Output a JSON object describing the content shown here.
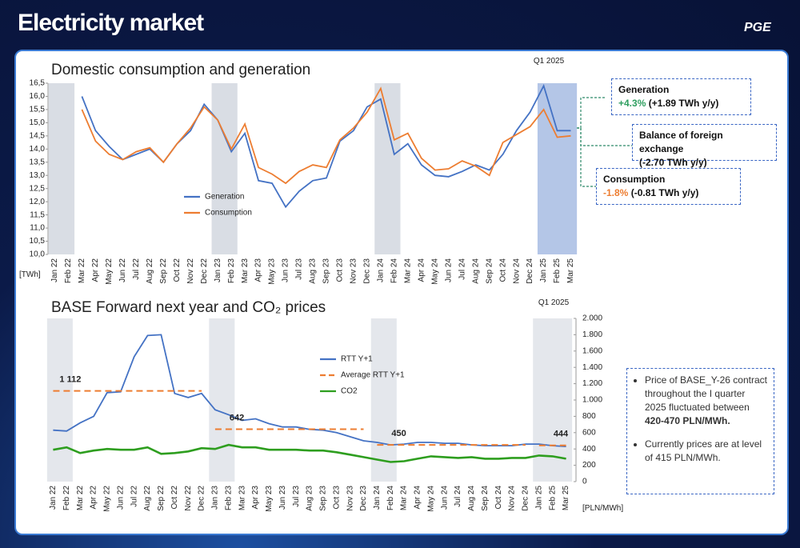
{
  "header": {
    "title": "Electricity market",
    "logo": "PGE"
  },
  "chart_data": [
    {
      "type": "line",
      "title": "Domestic consumption and generation",
      "highlight_label": "Q1 2025",
      "y_unit": "[TWh]",
      "categories": [
        "Jan 22",
        "Feb 22",
        "Mar 22",
        "Apr 22",
        "May 22",
        "Jun 22",
        "Jul 22",
        "Aug 22",
        "Sep 22",
        "Oct 22",
        "Nov 22",
        "Dec 22",
        "Jan 23",
        "Feb 23",
        "Mar 23",
        "Apr 23",
        "May 23",
        "Jun 23",
        "Jul 23",
        "Aug 23",
        "Sep 23",
        "Oct 23",
        "Nov 23",
        "Dec 23",
        "Jan 24",
        "Feb 24",
        "Mar 24",
        "Apr 24",
        "May 24",
        "Jun 24",
        "Jul 24",
        "Aug 24",
        "Sep 24",
        "Oct 24",
        "Nov 24",
        "Dec 24",
        "Jan 25",
        "Feb 25",
        "Mar 25"
      ],
      "series": [
        {
          "name": "Generation",
          "color": "#4472c4",
          "values": [
            null,
            null,
            16.0,
            14.7,
            14.1,
            13.6,
            13.8,
            14.0,
            13.5,
            14.2,
            14.7,
            15.7,
            15.1,
            13.9,
            14.6,
            12.8,
            12.7,
            11.8,
            12.4,
            12.8,
            12.9,
            14.3,
            14.7,
            15.6,
            15.9,
            13.8,
            14.2,
            13.4,
            13.0,
            12.95,
            13.15,
            13.4,
            13.2,
            13.8,
            14.7,
            15.4,
            16.4,
            14.7,
            14.7
          ]
        },
        {
          "name": "Consumption",
          "color": "#ed7d31",
          "values": [
            null,
            null,
            15.5,
            14.3,
            13.8,
            13.6,
            13.9,
            14.05,
            13.5,
            14.2,
            14.8,
            15.6,
            15.1,
            14.0,
            14.95,
            13.3,
            13.05,
            12.7,
            13.15,
            13.4,
            13.3,
            14.35,
            14.8,
            15.4,
            16.3,
            14.35,
            14.6,
            13.65,
            13.2,
            13.25,
            13.55,
            13.35,
            13.0,
            14.25,
            14.55,
            14.85,
            15.5,
            14.45,
            14.5
          ]
        }
      ],
      "ylim": [
        10,
        16.5
      ],
      "yticks": [
        {
          "value": 10,
          "label": "10,0"
        },
        {
          "value": 10.5,
          "label": "10,5"
        },
        {
          "value": 11,
          "label": "11,0"
        },
        {
          "value": 11.5,
          "label": "11,5"
        },
        {
          "value": 12,
          "label": "12,0"
        },
        {
          "value": 12.5,
          "label": "12,5"
        },
        {
          "value": 13,
          "label": "13,0"
        },
        {
          "value": 13.5,
          "label": "13,5"
        },
        {
          "value": 14,
          "label": "14,0"
        },
        {
          "value": 14.5,
          "label": "14,5"
        },
        {
          "value": 15,
          "label": "15,0"
        },
        {
          "value": 15.5,
          "label": "15,5"
        },
        {
          "value": 16,
          "label": "16,0"
        },
        {
          "value": 16.5,
          "label": "16,5"
        }
      ],
      "grid": false
    },
    {
      "type": "line",
      "title": "BASE Forward next year and CO₂ prices",
      "highlight_label": "Q1 2025",
      "y_unit": "[PLN/MWh]",
      "categories": [
        "Jan 22",
        "Feb 22",
        "Mar 22",
        "Apr 22",
        "May 22",
        "Jun 22",
        "Jul 22",
        "Aug 22",
        "Sep 22",
        "Oct 22",
        "Nov 22",
        "Dec 22",
        "Jan 23",
        "Feb 23",
        "Mar 23",
        "Apr 23",
        "May 23",
        "Jun 23",
        "Jul 23",
        "Aug 23",
        "Sep 23",
        "Oct 23",
        "Nov 23",
        "Dec 23",
        "Jan 24",
        "Feb 24",
        "Mar 24",
        "Apr 24",
        "May 24",
        "Jun 24",
        "Jul 24",
        "Aug 24",
        "Sep 24",
        "Oct 24",
        "Nov 24",
        "Dec 24",
        "Jan 25",
        "Feb 25",
        "Mar 25"
      ],
      "series": [
        {
          "name": "RTT Y+1",
          "color": "#4472c4",
          "style": "solid",
          "values": [
            630,
            620,
            720,
            800,
            1090,
            1100,
            1530,
            1790,
            1800,
            1080,
            1030,
            1080,
            880,
            820,
            750,
            770,
            710,
            670,
            670,
            640,
            630,
            600,
            550,
            500,
            480,
            450,
            460,
            480,
            480,
            470,
            470,
            450,
            440,
            440,
            440,
            460,
            460,
            440,
            430
          ]
        },
        {
          "name": "Average RTT Y+1",
          "color": "#ed7d31",
          "style": "dashed",
          "values": [
            1112,
            1112,
            1112,
            1112,
            1112,
            1112,
            1112,
            1112,
            1112,
            1112,
            1112,
            1112,
            642,
            642,
            642,
            642,
            642,
            642,
            642,
            642,
            642,
            642,
            642,
            642,
            450,
            450,
            450,
            450,
            450,
            450,
            450,
            450,
            450,
            450,
            450,
            450,
            444,
            444,
            444
          ]
        },
        {
          "name": "CO2",
          "color": "#2e9e1f",
          "style": "solid",
          "values": [
            390,
            420,
            350,
            380,
            400,
            390,
            390,
            420,
            340,
            350,
            370,
            410,
            400,
            450,
            420,
            420,
            390,
            390,
            390,
            380,
            380,
            360,
            330,
            300,
            270,
            240,
            250,
            280,
            310,
            300,
            290,
            300,
            280,
            280,
            290,
            290,
            320,
            310,
            280
          ]
        }
      ],
      "annotations": [
        {
          "text": "1 112",
          "value": 1112,
          "x": "Jan 22"
        },
        {
          "text": "642",
          "value": 642,
          "x": "Jan 23"
        },
        {
          "text": "450",
          "value": 450,
          "x": "Jan 24"
        },
        {
          "text": "444",
          "value": 444,
          "x": "Jan 25"
        }
      ],
      "ylim": [
        0,
        2000
      ],
      "yticks": [
        0,
        {
          "value": 200,
          "label": "200"
        },
        {
          "value": 400,
          "label": "400"
        },
        {
          "value": 600,
          "label": "600"
        },
        {
          "value": 800,
          "label": "800"
        },
        {
          "value": 1000,
          "label": "1.000"
        },
        {
          "value": 1200,
          "label": "1.200"
        },
        {
          "value": 1400,
          "label": "1.400"
        },
        {
          "value": 1600,
          "label": "1.600"
        },
        {
          "value": 1800,
          "label": "1.800"
        },
        {
          "value": 2000,
          "label": "2.000"
        }
      ],
      "grid": false
    }
  ],
  "callouts": [
    {
      "title": "Generation",
      "change": "+4.3%",
      "detail": "(+1.89 TWh y/y)"
    },
    {
      "title": "Balance of foreign exchange",
      "detail": "(-2.70 TWh y/y)"
    },
    {
      "title": "Consumption",
      "change": "-1.8%",
      "detail": "(-0.81 TWh y/y)"
    }
  ],
  "bullets": [
    {
      "text": "Price of BASE_Y-26 contract throughout the I quarter 2025 fluctuated between ",
      "bold": "420-470 PLN/MWh."
    },
    {
      "text": "Currently prices are at level of 415 PLN/MWh."
    }
  ]
}
